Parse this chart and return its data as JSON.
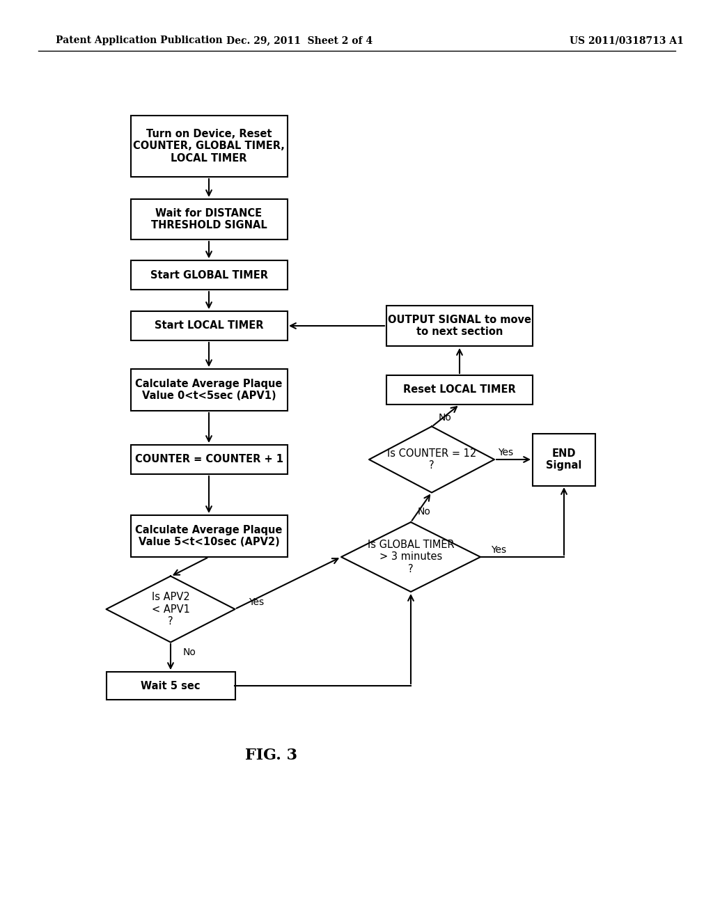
{
  "title": "FIG. 3",
  "header_left": "Patent Application Publication",
  "header_center": "Dec. 29, 2011  Sheet 2 of 4",
  "header_right": "US 2011/0318713 A1",
  "bg_color": "#ffffff"
}
